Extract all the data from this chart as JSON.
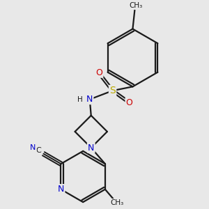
{
  "bg_color": "#e8e8e8",
  "bond_color": "#1a1a1a",
  "atom_colors": {
    "N": "#0000cc",
    "O": "#cc0000",
    "S": "#bbaa00",
    "C": "#1a1a1a",
    "H": "#555555"
  },
  "figsize": [
    3.0,
    3.0
  ],
  "dpi": 100
}
